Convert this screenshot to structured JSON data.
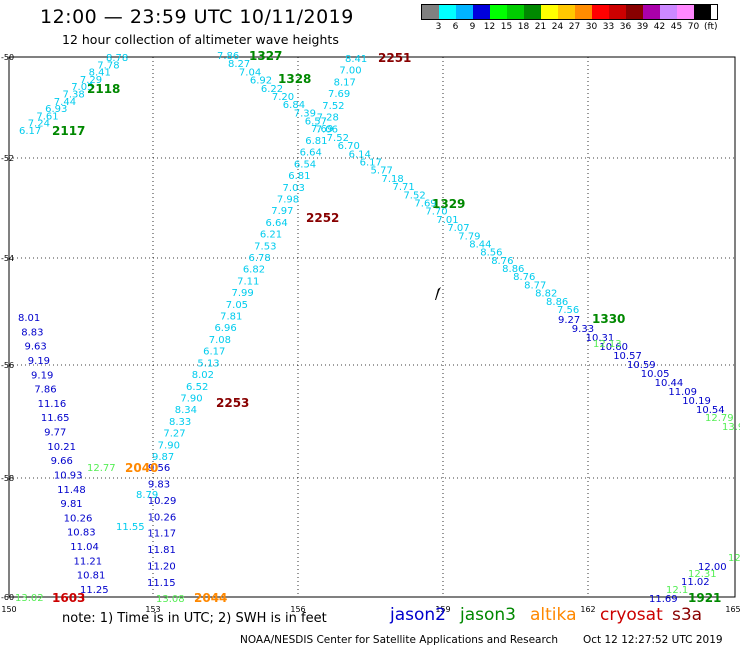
{
  "header": {
    "title": "12:00 — 23:59 UTC 10/11/2019",
    "subtitle": "12 hour collection of altimeter wave heights"
  },
  "legend": {
    "unit": "(ft)",
    "colors": [
      "#808080",
      "#00ffff",
      "#00b4ff",
      "#0000dd",
      "#00ff00",
      "#00cc00",
      "#008800",
      "#ffff00",
      "#ffc800",
      "#ff8c00",
      "#ff0000",
      "#cc0000",
      "#880000",
      "#aa00aa",
      "#cc88ff",
      "#ff88ff",
      "#000000"
    ],
    "labels": [
      "3",
      "6",
      "9",
      "12",
      "15",
      "18",
      "21",
      "24",
      "27",
      "30",
      "33",
      "36",
      "39",
      "42",
      "45",
      "70"
    ]
  },
  "map": {
    "lat_labels": [
      "-50",
      "-52",
      "-54",
      "-56",
      "-58",
      "-60"
    ],
    "lon_labels": [
      "150",
      "153",
      "156",
      "159",
      "162",
      "165"
    ]
  },
  "tracks": {
    "jason3_north": {
      "color": "#00ccee",
      "values": [
        "6.17",
        "7.24",
        "7.61",
        "6.93",
        "7.44",
        "7.38",
        "7.05",
        "7.29",
        "8.41",
        "7.78",
        "8.78"
      ],
      "time_labels": [
        {
          "text": "2117",
          "color": "#008800"
        },
        {
          "text": "2118",
          "color": "#008800"
        }
      ]
    },
    "diag_east": {
      "color": "#00ccee",
      "values": [
        "7.86",
        "8.27",
        "7.04",
        "6.92",
        "6.22",
        "7.20",
        "6.84",
        "7.39",
        "6.57",
        "7.06",
        "7.52",
        "6.70",
        "6.14",
        "6.17",
        "5.77",
        "7.18",
        "7.71",
        "7.52",
        "7.69",
        "7.70",
        "7.01",
        "7.07",
        "7.79",
        "8.44",
        "8.56",
        "8.76",
        "8.86",
        "8.76",
        "8.77",
        "8.82",
        "8.86",
        "7.56"
      ],
      "time_labels": [
        {
          "text": "1327",
          "color": "#008800"
        },
        {
          "text": "1328",
          "color": "#008800"
        },
        {
          "text": "1329",
          "color": "#008800"
        },
        {
          "text": "1330",
          "color": "#008800"
        }
      ]
    },
    "jason2_east": {
      "color": "#0000cc",
      "values": [
        "9.27",
        "9.33",
        "10.31",
        "10.60",
        "10.57",
        "10.59",
        "10.05",
        "10.44",
        "11.09",
        "10.19",
        "10.54"
      ],
      "extra_values": [
        {
          "text": "12.13",
          "color": "#55ee55"
        },
        {
          "text": "12.79",
          "color": "#55ee55"
        },
        {
          "text": "13.9",
          "color": "#55ee55"
        }
      ]
    },
    "diag_up": {
      "color": "#00ccee",
      "values": [
        "8.41",
        "7.00",
        "8.17",
        "7.69",
        "7.52",
        "7.28",
        "7.69",
        "6.81",
        "6.64",
        "6.54",
        "6.81",
        "7.03",
        "7.98",
        "7.97",
        "6.64",
        "6.21",
        "7.53",
        "6.78",
        "6.82",
        "7.11",
        "7.99",
        "7.05",
        "7.81",
        "6.96",
        "7.08",
        "6.17",
        "5.13",
        "8.02",
        "6.52",
        "7.90",
        "8.34",
        "8.33",
        "7.27",
        "7.90",
        "9.87"
      ],
      "time_labels": [
        {
          "text": "2251",
          "color": "#880000"
        },
        {
          "text": "2252",
          "color": "#880000"
        },
        {
          "text": "2253",
          "color": "#880000"
        }
      ]
    },
    "jason2_west": {
      "color": "#0000cc",
      "values": [
        "8.01",
        "8.83",
        "9.63",
        "9.19",
        "9.19",
        "7.86",
        "11.16",
        "11.65",
        "9.77",
        "10.21",
        "9.66",
        "10.93",
        "11.48",
        "9.81",
        "10.26",
        "10.83",
        "11.04",
        "11.21",
        "10.81",
        "11.25"
      ],
      "lower_values": [
        "9.56",
        "9.83",
        "10.29",
        "10.26",
        "11.17",
        "11.81",
        "11.20",
        "11.15"
      ],
      "cyan_values": [
        "8.79",
        "11.55"
      ],
      "green_values": [
        {
          "text": "12.77",
          "color": "#55ee55"
        },
        {
          "text": "13.08",
          "color": "#55ee55"
        },
        {
          "text": "13.02",
          "color": "#55ee55"
        }
      ]
    },
    "others": {
      "values": [
        {
          "text": "2040",
          "color": "#ff8800"
        },
        {
          "text": "2044",
          "color": "#ff8800"
        },
        {
          "text": "1603",
          "color": "#cc0000"
        },
        {
          "text": "1921",
          "color": "#008800"
        },
        {
          "text": "11.69",
          "color": "#0000cc"
        },
        {
          "text": "11.02",
          "color": "#0000cc"
        },
        {
          "text": "12.00",
          "color": "#0000cc"
        },
        {
          "text": "12.31",
          "color": "#55ee55"
        },
        {
          "text": "12",
          "color": "#55ee55"
        },
        {
          "text": "12.1",
          "color": "#55ee55"
        }
      ]
    }
  },
  "footer": {
    "note": "note:  1) Time is in UTC;  2) SWH is in feet",
    "satellites": [
      {
        "name": "jason2",
        "color": "#0000cc"
      },
      {
        "name": "jason3",
        "color": "#008800"
      },
      {
        "name": "altika",
        "color": "#ff8800"
      },
      {
        "name": "cryosat",
        "color": "#cc0000"
      },
      {
        "name": "s3a",
        "color": "#880000"
      }
    ],
    "credit": "NOAA/NESDIS Center for Satellite Applications and Research",
    "timestamp": "Oct 12 12:27:52 UTC 2019"
  }
}
